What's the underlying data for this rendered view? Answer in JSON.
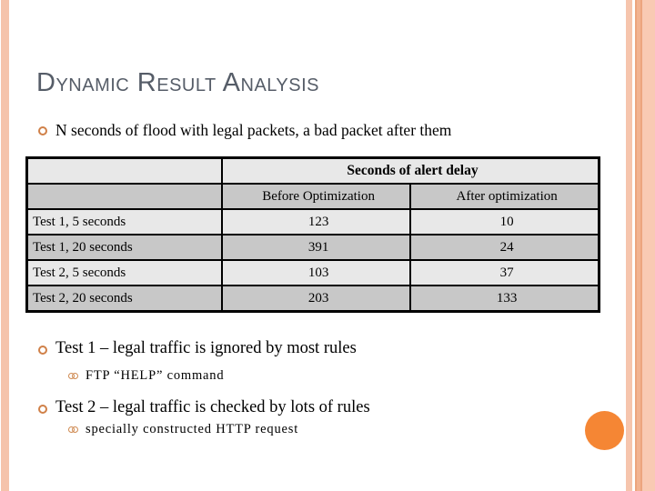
{
  "slide": {
    "title": "Dynamic Result Analysis",
    "intro_bullet": "N seconds of flood with legal packets, a bad packet after them",
    "bullets": [
      {
        "text": "Test 1 – legal traffic is ignored by most rules",
        "sub": "FTP “HELP” command"
      },
      {
        "text": "Test 2 – legal traffic is checked by lots of rules",
        "sub": "specially constructed HTTP request"
      }
    ]
  },
  "table": {
    "merged_header": "Seconds of alert delay",
    "col_headers": [
      "Before Optimization",
      "After optimization"
    ],
    "rows": [
      {
        "label": "Test 1, 5 seconds",
        "before": "123",
        "after": "10"
      },
      {
        "label": "Test 1, 20 seconds",
        "before": "391",
        "after": "24"
      },
      {
        "label": "Test 2, 5 seconds",
        "before": "103",
        "after": "37"
      },
      {
        "label": "Test 2, 20 seconds",
        "before": "203",
        "after": "133"
      }
    ]
  },
  "colors": {
    "title_text": "#565d68",
    "edge_stripe_salmon": "#f5c3ab",
    "edge_stripe_dark": "#eca57e",
    "bullet_ring_orange": "#d08048",
    "table_row_light": "#e8e8e8",
    "table_row_dark": "#c8c8c8",
    "accent_circle_orange": "#f58634"
  }
}
